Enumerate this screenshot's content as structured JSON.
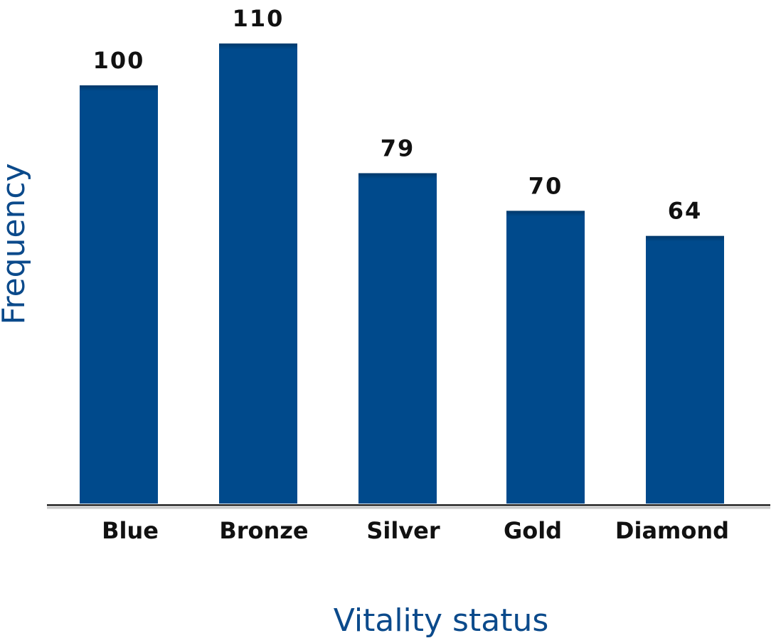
{
  "chart_data": {
    "type": "bar",
    "x_label": "Vitality status",
    "y_label": "Frequency",
    "categories": [
      "Blue",
      "Bronze",
      "Silver",
      "Gold",
      "Diamond"
    ],
    "values": [
      100,
      110,
      79,
      70,
      64
    ],
    "color": "#004a8c"
  }
}
